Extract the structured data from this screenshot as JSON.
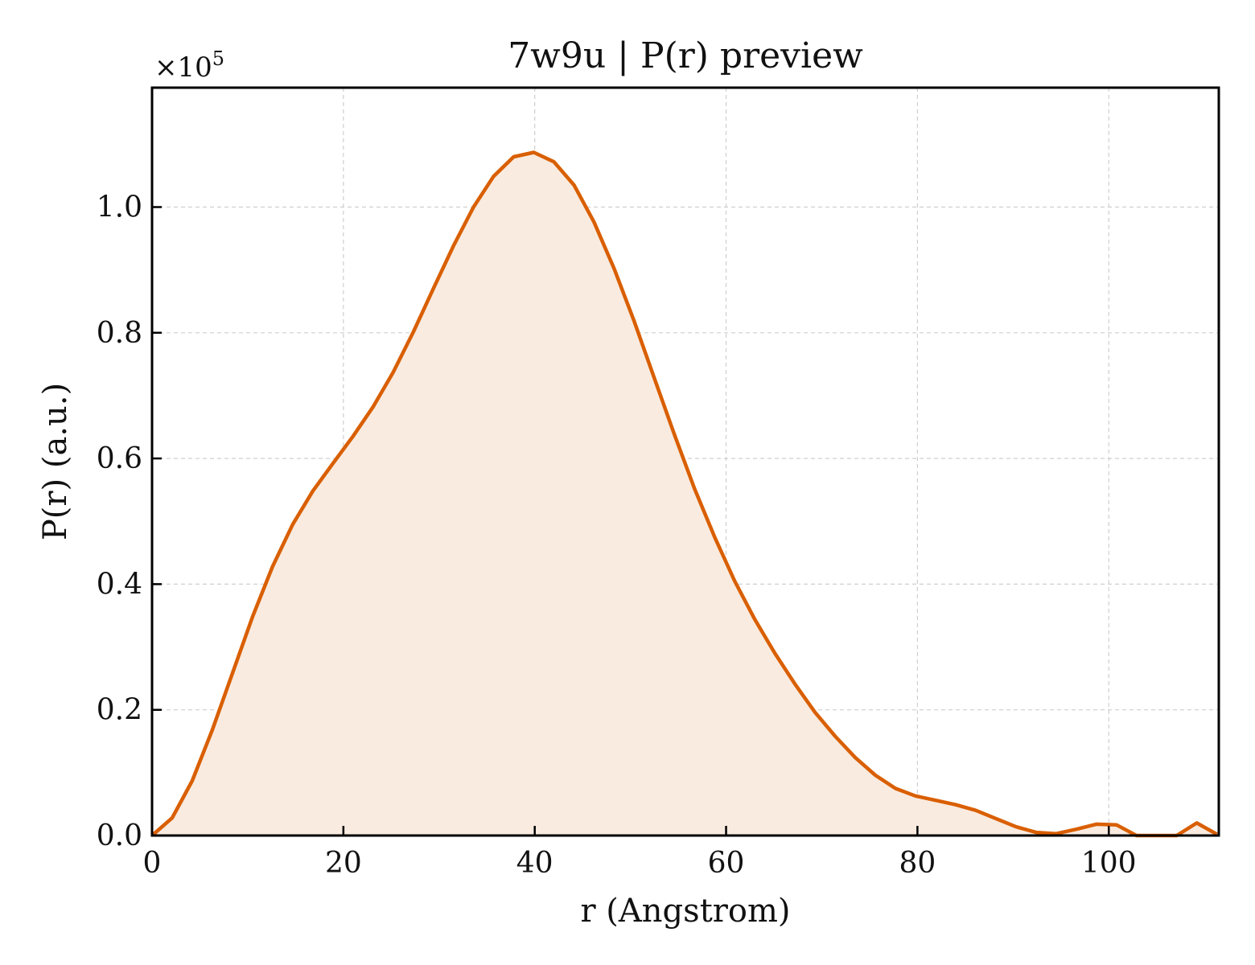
{
  "chart_data": {
    "type": "area",
    "title": "7w9u | P(r) preview",
    "xlabel": "r (Angstrom)",
    "ylabel": "P(r) (a.u.)",
    "y_multiplier_base": "×10",
    "y_multiplier_exp": "5",
    "xlim": [
      0,
      111.5
    ],
    "ylim": [
      0,
      1.19
    ],
    "x_ticks": [
      0,
      20,
      40,
      60,
      80,
      100
    ],
    "x_tick_labels": [
      "0",
      "20",
      "40",
      "60",
      "80",
      "100"
    ],
    "y_ticks": [
      0.0,
      0.2,
      0.4,
      0.6,
      0.8,
      1.0
    ],
    "y_tick_labels": [
      "0.0",
      "0.2",
      "0.4",
      "0.6",
      "0.8",
      "1.0"
    ],
    "grid": true,
    "line_color": "#d95f02",
    "fill_color": "#f9ebe0",
    "series": [
      {
        "x": [
          0,
          2.1,
          4.2,
          6.3,
          8.4,
          10.5,
          12.6,
          14.7,
          16.8,
          18.9,
          21.0,
          23.1,
          25.2,
          27.3,
          29.4,
          31.5,
          33.6,
          35.7,
          37.8,
          39.9,
          42.0,
          44.1,
          46.2,
          48.3,
          50.4,
          52.5,
          54.6,
          56.7,
          58.8,
          60.9,
          63.0,
          65.1,
          67.2,
          69.3,
          71.4,
          73.5,
          75.6,
          77.7,
          79.8,
          81.9,
          84.0,
          86.1,
          88.2,
          90.3,
          92.4,
          94.5,
          96.6,
          98.7,
          100.8,
          102.9,
          105.0,
          107.1,
          109.2,
          111.3
        ],
        "values": [
          0.0,
          0.028,
          0.087,
          0.168,
          0.258,
          0.348,
          0.428,
          0.495,
          0.548,
          0.592,
          0.635,
          0.682,
          0.737,
          0.801,
          0.87,
          0.938,
          1.0,
          1.049,
          1.08,
          1.087,
          1.072,
          1.035,
          0.976,
          0.902,
          0.818,
          0.728,
          0.638,
          0.552,
          0.475,
          0.405,
          0.344,
          0.29,
          0.241,
          0.196,
          0.158,
          0.124,
          0.096,
          0.075,
          0.063,
          0.056,
          0.049,
          0.04,
          0.027,
          0.014,
          0.005,
          0.003,
          0.01,
          0.018,
          0.017,
          0.0,
          0.0,
          0.0,
          0.02,
          0.002
        ]
      }
    ]
  }
}
